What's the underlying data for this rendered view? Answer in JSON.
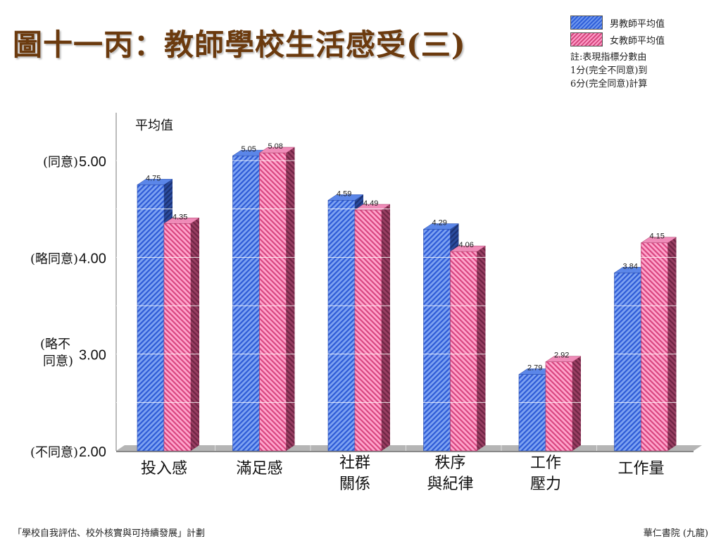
{
  "title": "圖十一丙：教師學校生活感受(三)",
  "legend": {
    "male": "男教師平均值",
    "female": "女教師平均值",
    "note_lines": [
      "註:表現指標分數由",
      "1分(完全不同意)到",
      "6分(完全同意)計算"
    ]
  },
  "footer": {
    "left": "「學校自我評估、校外核實與可持續發展」計劃",
    "right": "華仁書院 (九龍)"
  },
  "colors": {
    "male": "#3d6fe3",
    "female": "#f07bb0",
    "title": "#6b3a0e"
  },
  "chart_data": {
    "type": "bar",
    "ylabel": "平均值",
    "ylim": [
      2,
      5.6
    ],
    "yticks": [
      {
        "value": 5,
        "label": "5.00",
        "desc": [
          "(同意)"
        ]
      },
      {
        "value": 4,
        "label": "4.00",
        "desc": [
          "(略同意)"
        ]
      },
      {
        "value": 3,
        "label": "3.00",
        "desc": [
          "(略不",
          "同意)"
        ]
      },
      {
        "value": 2,
        "label": "2.00",
        "desc": [
          "(不同意)"
        ]
      }
    ],
    "categories": [
      [
        "投入感"
      ],
      [
        "滿足感"
      ],
      [
        "社群",
        "關係"
      ],
      [
        "秩序",
        "與紀律"
      ],
      [
        "工作",
        "壓力"
      ],
      [
        "工作量"
      ]
    ],
    "series": [
      {
        "name": "男教師平均值",
        "values": [
          4.75,
          5.05,
          4.59,
          4.29,
          2.79,
          3.84
        ],
        "labels": [
          "4.75",
          "5.05",
          "4.59",
          "4.29",
          "2.79",
          "3.84"
        ]
      },
      {
        "name": "女教師平均值",
        "values": [
          4.35,
          5.08,
          4.49,
          4.06,
          2.92,
          4.15
        ],
        "labels": [
          "4.35",
          "5.08",
          "4.49",
          "4.06",
          "2.92",
          "4.15"
        ]
      }
    ]
  }
}
